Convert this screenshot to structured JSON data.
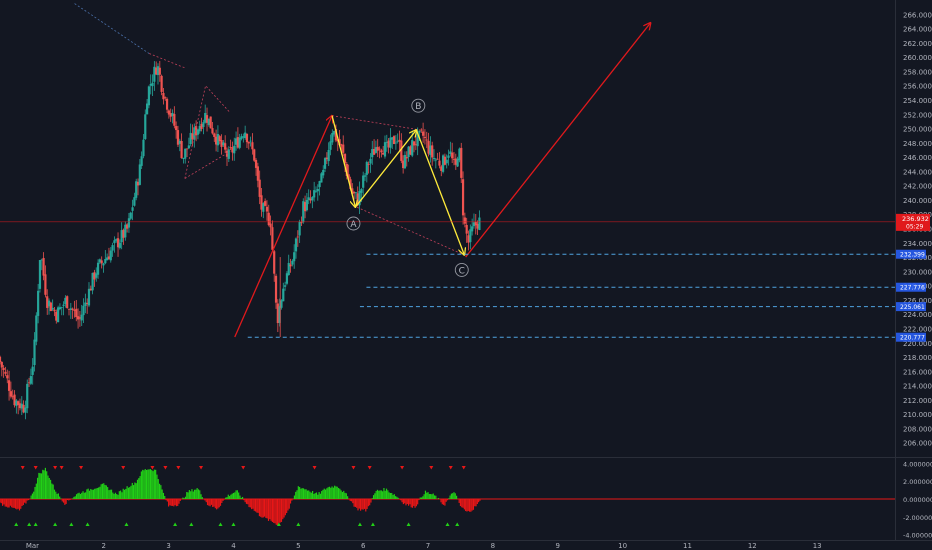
{
  "chart_data": {
    "type": "candlestick",
    "price_axis": {
      "range": [
        204,
        268
      ],
      "ticks": [
        "206.000",
        "208.000",
        "210.000",
        "212.000",
        "214.000",
        "216.000",
        "218.000",
        "220.000",
        "222.000",
        "224.000",
        "226.000",
        "228.000",
        "230.000",
        "232.000",
        "234.000",
        "236.000",
        "238.000",
        "240.000",
        "242.000",
        "244.000",
        "246.000",
        "248.000",
        "250.000",
        "252.000",
        "254.000",
        "256.000",
        "258.000",
        "260.000",
        "262.000",
        "264.000",
        "266.000"
      ]
    },
    "time_axis": {
      "range": [
        0,
        13.8
      ],
      "ticks": [
        {
          "label": "Mar",
          "x": 0.5
        },
        {
          "label": "2",
          "x": 1.6
        },
        {
          "label": "3",
          "x": 2.6
        },
        {
          "label": "4",
          "x": 3.6
        },
        {
          "label": "5",
          "x": 4.6
        },
        {
          "label": "6",
          "x": 5.6
        },
        {
          "label": "7",
          "x": 6.6
        },
        {
          "label": "8",
          "x": 7.6
        },
        {
          "label": "9",
          "x": 8.6
        },
        {
          "label": "10",
          "x": 9.6
        },
        {
          "label": "11",
          "x": 10.6
        },
        {
          "label": "12",
          "x": 11.6
        },
        {
          "label": "13",
          "x": 12.6
        }
      ]
    },
    "price_path": [
      {
        "t": 0.0,
        "p": 218
      },
      {
        "t": 0.25,
        "p": 212
      },
      {
        "t": 0.4,
        "p": 211
      },
      {
        "t": 0.55,
        "p": 218
      },
      {
        "t": 0.65,
        "p": 233
      },
      {
        "t": 0.75,
        "p": 226
      },
      {
        "t": 0.9,
        "p": 224
      },
      {
        "t": 1.05,
        "p": 226
      },
      {
        "t": 1.25,
        "p": 223
      },
      {
        "t": 1.5,
        "p": 230
      },
      {
        "t": 1.75,
        "p": 233
      },
      {
        "t": 2.0,
        "p": 236
      },
      {
        "t": 2.2,
        "p": 245
      },
      {
        "t": 2.3,
        "p": 255
      },
      {
        "t": 2.45,
        "p": 259
      },
      {
        "t": 2.55,
        "p": 255
      },
      {
        "t": 2.7,
        "p": 251
      },
      {
        "t": 2.85,
        "p": 246
      },
      {
        "t": 3.0,
        "p": 249
      },
      {
        "t": 3.2,
        "p": 252
      },
      {
        "t": 3.4,
        "p": 248
      },
      {
        "t": 3.55,
        "p": 246
      },
      {
        "t": 3.8,
        "p": 250
      },
      {
        "t": 3.95,
        "p": 246
      },
      {
        "t": 4.05,
        "p": 239
      },
      {
        "t": 4.2,
        "p": 237
      },
      {
        "t": 4.3,
        "p": 223
      },
      {
        "t": 4.4,
        "p": 228
      },
      {
        "t": 4.55,
        "p": 232
      },
      {
        "t": 4.7,
        "p": 239
      },
      {
        "t": 4.85,
        "p": 240
      },
      {
        "t": 5.0,
        "p": 243
      },
      {
        "t": 5.15,
        "p": 250
      },
      {
        "t": 5.3,
        "p": 247
      },
      {
        "t": 5.45,
        "p": 241
      },
      {
        "t": 5.55,
        "p": 240
      },
      {
        "t": 5.7,
        "p": 245
      },
      {
        "t": 5.85,
        "p": 248
      },
      {
        "t": 6.0,
        "p": 247
      },
      {
        "t": 6.15,
        "p": 249
      },
      {
        "t": 6.25,
        "p": 245
      },
      {
        "t": 6.4,
        "p": 248
      },
      {
        "t": 6.55,
        "p": 249
      },
      {
        "t": 6.7,
        "p": 246
      },
      {
        "t": 6.85,
        "p": 245
      },
      {
        "t": 6.95,
        "p": 247
      },
      {
        "t": 7.05,
        "p": 244
      },
      {
        "t": 7.1,
        "p": 248
      },
      {
        "t": 7.18,
        "p": 237
      },
      {
        "t": 7.25,
        "p": 234
      },
      {
        "t": 7.32,
        "p": 236
      },
      {
        "t": 7.4,
        "p": 237
      }
    ],
    "current_price": {
      "label": "236.932",
      "countdown": "05:29",
      "value": 236.93
    },
    "horizontal_levels": [
      {
        "label": "232.399",
        "value": 232.399
      },
      {
        "label": "227.776",
        "value": 227.776
      },
      {
        "label": "225.061",
        "value": 225.061
      },
      {
        "label": "220.777",
        "value": 220.777
      }
    ],
    "wave_labels": [
      {
        "text": "A",
        "t": 5.45,
        "p": 236.7
      },
      {
        "text": "B",
        "t": 6.45,
        "p": 253.2
      },
      {
        "text": "C",
        "t": 7.12,
        "p": 230.2
      }
    ],
    "indicator": {
      "range": [
        -4.6,
        4.6
      ],
      "ticks": [
        "4.000000",
        "2.000000",
        "0.000000",
        "-2.000000",
        "-4.000000"
      ],
      "histogram": [
        {
          "t": 0.0,
          "v": -0.5
        },
        {
          "t": 0.3,
          "v": -1.3
        },
        {
          "t": 0.5,
          "v": 0.5
        },
        {
          "t": 0.6,
          "v": 2.8
        },
        {
          "t": 0.7,
          "v": 3.4
        },
        {
          "t": 0.85,
          "v": 1.0
        },
        {
          "t": 1.0,
          "v": -0.5
        },
        {
          "t": 1.2,
          "v": 0.6
        },
        {
          "t": 1.4,
          "v": 1.1
        },
        {
          "t": 1.6,
          "v": 1.6
        },
        {
          "t": 1.8,
          "v": 0.5
        },
        {
          "t": 1.95,
          "v": 1.3
        },
        {
          "t": 2.1,
          "v": 1.9
        },
        {
          "t": 2.2,
          "v": 3.2
        },
        {
          "t": 2.3,
          "v": 3.4
        },
        {
          "t": 2.4,
          "v": 3.2
        },
        {
          "t": 2.5,
          "v": 1.0
        },
        {
          "t": 2.6,
          "v": -0.8
        },
        {
          "t": 2.75,
          "v": -0.6
        },
        {
          "t": 2.9,
          "v": 0.8
        },
        {
          "t": 3.05,
          "v": 1.2
        },
        {
          "t": 3.2,
          "v": -0.6
        },
        {
          "t": 3.35,
          "v": -1.1
        },
        {
          "t": 3.5,
          "v": 0.3
        },
        {
          "t": 3.65,
          "v": 0.9
        },
        {
          "t": 3.8,
          "v": -0.5
        },
        {
          "t": 4.0,
          "v": -1.8
        },
        {
          "t": 4.15,
          "v": -2.4
        },
        {
          "t": 4.3,
          "v": -2.9
        },
        {
          "t": 4.45,
          "v": -1.2
        },
        {
          "t": 4.6,
          "v": 1.4
        },
        {
          "t": 4.75,
          "v": 1.0
        },
        {
          "t": 4.9,
          "v": 0.5
        },
        {
          "t": 5.05,
          "v": 1.3
        },
        {
          "t": 5.2,
          "v": 1.5
        },
        {
          "t": 5.35,
          "v": 0.4
        },
        {
          "t": 5.5,
          "v": -1.1
        },
        {
          "t": 5.65,
          "v": -1.3
        },
        {
          "t": 5.8,
          "v": 0.9
        },
        {
          "t": 5.95,
          "v": 1.1
        },
        {
          "t": 6.1,
          "v": 0.4
        },
        {
          "t": 6.25,
          "v": -0.6
        },
        {
          "t": 6.4,
          "v": -0.9
        },
        {
          "t": 6.55,
          "v": 0.8
        },
        {
          "t": 6.7,
          "v": 0.4
        },
        {
          "t": 6.85,
          "v": -0.7
        },
        {
          "t": 7.0,
          "v": 0.9
        },
        {
          "t": 7.1,
          "v": -0.8
        },
        {
          "t": 7.2,
          "v": -1.5
        },
        {
          "t": 7.3,
          "v": -1.1
        },
        {
          "t": 7.4,
          "v": -0.3
        }
      ],
      "sell_markers_t": [
        0.35,
        0.55,
        0.85,
        0.95,
        1.25,
        1.9,
        2.35,
        2.55,
        2.75,
        3.1,
        3.75,
        4.85,
        5.45,
        5.7,
        6.2,
        6.65,
        6.95,
        7.15
      ],
      "buy_markers_t": [
        0.25,
        0.45,
        0.55,
        0.85,
        1.1,
        1.35,
        1.95,
        2.7,
        2.95,
        3.4,
        3.6,
        4.3,
        4.6,
        5.55,
        5.75,
        6.3,
        6.9,
        7.05
      ]
    },
    "colors": {
      "background": "#131722",
      "candle_up": "#26a69a",
      "candle_down": "#ef5350",
      "hist_up": "#22d017",
      "hist_down": "#e81717",
      "impulse_arrow": "#e0191c",
      "wave_arrow": "#ffeb3b",
      "triangle_lines": "#c2415a",
      "levels": "#4fa3e0",
      "current_price_line": "#e0191c"
    }
  }
}
